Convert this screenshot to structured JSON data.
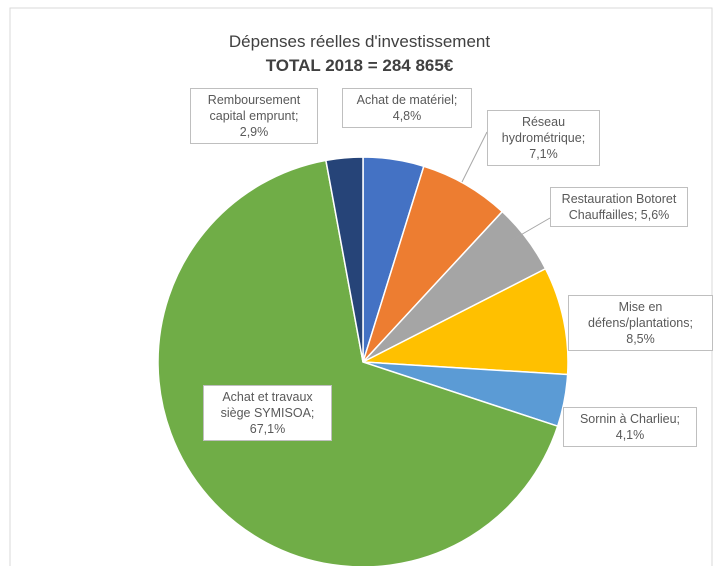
{
  "chart_data": {
    "type": "pie",
    "title": "Dépenses réelles d'investissement",
    "subtitle": "TOTAL 2018 = 284 865€",
    "label_separator": ";",
    "categories": [
      "Achat de matériel",
      "Réseau hydrométrique",
      "Restauration Botoret Chauffailles",
      "Mise en défens/plantations",
      "Sornin à Charlieu",
      "Achat et travaux siège SYMISOA",
      "Remboursement capital emprunt"
    ],
    "values": [
      4.8,
      7.1,
      5.6,
      8.5,
      4.1,
      67.1,
      2.9
    ],
    "value_labels": [
      "4,8%",
      "7,1%",
      "5,6%",
      "8,5%",
      "4,1%",
      "67,1%",
      "2,9%"
    ],
    "colors": [
      "#4472c4",
      "#ed7d31",
      "#a5a5a5",
      "#ffc000",
      "#5b9bd5",
      "#70ad47",
      "#264478"
    ]
  }
}
